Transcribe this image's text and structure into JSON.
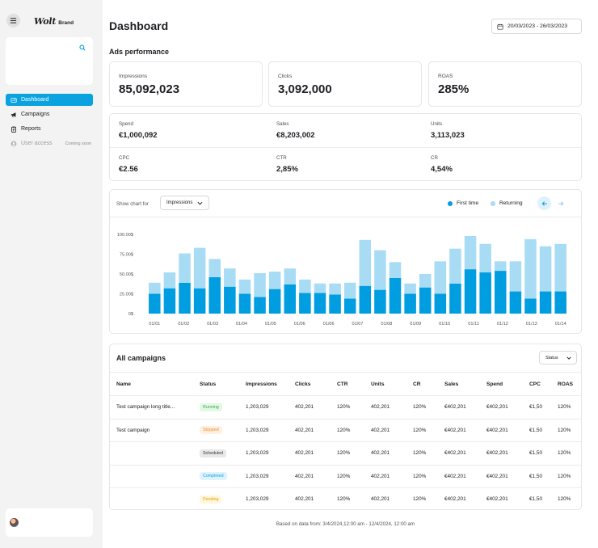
{
  "sidebar": {
    "logo": "Wolt",
    "logo_sub": "Brand",
    "items": [
      {
        "label": "Dashboard",
        "icon": "dashboard-icon",
        "active": true
      },
      {
        "label": "Campaigns",
        "icon": "megaphone-icon"
      },
      {
        "label": "Reports",
        "icon": "clipboard-icon"
      },
      {
        "label": "User access",
        "icon": "user-icon",
        "disabled": true,
        "badge": "Coming soon"
      }
    ]
  },
  "header": {
    "title": "Dashboard",
    "date_range": "20/03/2023 - 26/03/2023"
  },
  "ads": {
    "title": "Ads performance",
    "kpis": [
      {
        "label": "Impressions",
        "value": "85,092,023"
      },
      {
        "label": "Clicks",
        "value": "3,092,000"
      },
      {
        "label": "ROAS",
        "value": "285%"
      }
    ],
    "metrics": [
      {
        "label": "Spend",
        "value": "€1,000,092"
      },
      {
        "label": "Sales",
        "value": "€8,203,002"
      },
      {
        "label": "Units",
        "value": "3,113,023"
      },
      {
        "label": "CPC",
        "value": "€2.56"
      },
      {
        "label": "CTR",
        "value": "2,85%"
      },
      {
        "label": "CR",
        "value": "4,54%"
      }
    ]
  },
  "chart_controls": {
    "show_label": "Show chart for",
    "selected": "Impressions",
    "legend_first": "First time",
    "legend_returning": "Returning"
  },
  "colors": {
    "accent": "#0aa3e0",
    "first_time": "#009de0",
    "returning": "#a8dcf5",
    "running_bg": "#e3f7e5",
    "running_fg": "#3aaa47",
    "stopped_bg": "#fff1e2",
    "stopped_fg": "#f08a28",
    "scheduled_bg": "#e8e8e8",
    "scheduled_fg": "#333333",
    "completed_bg": "#e0f3fc",
    "completed_fg": "#0aa3e0",
    "pending_bg": "#fff7dc",
    "pending_fg": "#e8a200"
  },
  "chart_data": {
    "type": "bar",
    "stacked": true,
    "x_ticks": [
      "01/01",
      "01/02",
      "01/03",
      "01/04",
      "01/05",
      "01/06",
      "01/06",
      "01/07",
      "01/08",
      "01/09",
      "01/10",
      "01/11",
      "01/12",
      "01/13",
      "01/14"
    ],
    "y_ticks": [
      "0$",
      "25.00$",
      "50.00$",
      "75.00$",
      "100.00$"
    ],
    "ylim": [
      0,
      100000
    ],
    "series": [
      {
        "name": "First time",
        "values": [
          25000,
          32000,
          39000,
          32000,
          46000,
          34000,
          25000,
          21000,
          31000,
          37000,
          26000,
          26000,
          24000,
          19000,
          35000,
          30000,
          45000,
          25000,
          33000,
          25000,
          38000,
          56000,
          52000,
          54000,
          28000,
          19000,
          28000,
          28000
        ]
      },
      {
        "name": "Returning",
        "values": [
          14000,
          20000,
          37000,
          51000,
          23000,
          23000,
          18000,
          30000,
          22000,
          20000,
          17000,
          12000,
          14000,
          20000,
          58000,
          50000,
          20000,
          13000,
          17000,
          41000,
          44000,
          42000,
          36000,
          12000,
          38000,
          75000,
          57000,
          60000
        ]
      }
    ]
  },
  "campaigns": {
    "title": "All campaigns",
    "filter": "Status",
    "columns": [
      "Name",
      "Status",
      "Impressions",
      "Clicks",
      "CTR",
      "Units",
      "CR",
      "Sales",
      "Spend",
      "CPC",
      "ROAS"
    ],
    "rows": [
      {
        "name": "Test campaign long title...",
        "status": "Running",
        "status_key": "running",
        "impressions": "1,203,029",
        "clicks": "402,201",
        "ctr": "120%",
        "units": "402,201",
        "cr": "120%",
        "sales": "€402,201",
        "spend": "€402,201",
        "cpc": "€1,50",
        "roas": "120%"
      },
      {
        "name": "Test campaign",
        "status": "Stopped",
        "status_key": "stopped",
        "impressions": "1,203,029",
        "clicks": "402,201",
        "ctr": "120%",
        "units": "402,201",
        "cr": "120%",
        "sales": "€402,201",
        "spend": "€402,201",
        "cpc": "€1,50",
        "roas": "120%"
      },
      {
        "name": "",
        "status": "Scheduled",
        "status_key": "scheduled",
        "impressions": "1,203,029",
        "clicks": "402,201",
        "ctr": "120%",
        "units": "402,201",
        "cr": "120%",
        "sales": "€402,201",
        "spend": "€402,201",
        "cpc": "€1,50",
        "roas": "120%"
      },
      {
        "name": "",
        "status": "Completed",
        "status_key": "completed",
        "impressions": "1,203,029",
        "clicks": "402,201",
        "ctr": "120%",
        "units": "402,201",
        "cr": "120%",
        "sales": "€402,201",
        "spend": "€402,201",
        "cpc": "€1,50",
        "roas": "120%"
      },
      {
        "name": "",
        "status": "Pending",
        "status_key": "pending",
        "impressions": "1,203,029",
        "clicks": "402,201",
        "ctr": "120%",
        "units": "402,201",
        "cr": "120%",
        "sales": "€402,201",
        "spend": "€402,201",
        "cpc": "€1,50",
        "roas": "120%"
      }
    ]
  },
  "footer": {
    "note": "Based on data from: 3/4/2024,12:00 am - 12/4/2024, 12:00 am"
  }
}
